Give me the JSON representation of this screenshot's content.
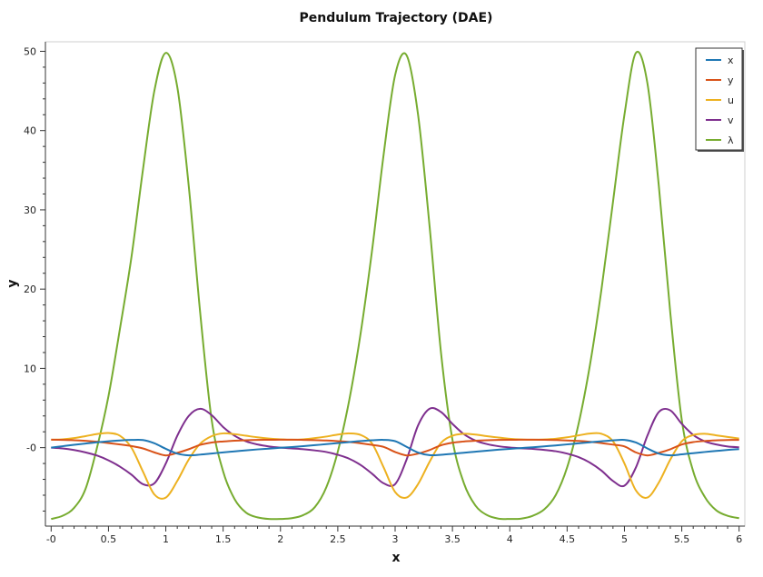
{
  "chart_data": {
    "type": "line",
    "title": "Pendulum Trajectory (DAE)",
    "xlabel": "x",
    "ylabel": "y",
    "xlim": [
      -0.05,
      6.05
    ],
    "ylim": [
      -9.9,
      51.2
    ],
    "x_ticks": [
      {
        "v": 0,
        "label": "-0"
      },
      {
        "v": 0.5,
        "label": "0.5"
      },
      {
        "v": 1,
        "label": "1"
      },
      {
        "v": 1.5,
        "label": "1.5"
      },
      {
        "v": 2,
        "label": "2"
      },
      {
        "v": 2.5,
        "label": "2.5"
      },
      {
        "v": 3,
        "label": "3"
      },
      {
        "v": 3.5,
        "label": "3.5"
      },
      {
        "v": 4,
        "label": "4"
      },
      {
        "v": 4.5,
        "label": "4.5"
      },
      {
        "v": 5,
        "label": "5"
      },
      {
        "v": 5.5,
        "label": "5.5"
      },
      {
        "v": 6,
        "label": "6"
      }
    ],
    "y_ticks": [
      {
        "v": 0,
        "label": "-0"
      },
      {
        "v": 10,
        "label": "10"
      },
      {
        "v": 20,
        "label": "20"
      },
      {
        "v": 30,
        "label": "30"
      },
      {
        "v": 40,
        "label": "40"
      },
      {
        "v": 50,
        "label": "50"
      }
    ],
    "grid": false,
    "legend_position": "top-right",
    "x": [
      0,
      0.1,
      0.2,
      0.3,
      0.4,
      0.5,
      0.6,
      0.7,
      0.8,
      0.9,
      1.0,
      1.1,
      1.2,
      1.3,
      1.4,
      1.5,
      1.6,
      1.7,
      1.8,
      1.9,
      2.0,
      2.1,
      2.2,
      2.3,
      2.4,
      2.5,
      2.6,
      2.7,
      2.8,
      2.9,
      3.0,
      3.1,
      3.2,
      3.3,
      3.4,
      3.5,
      3.6,
      3.7,
      3.8,
      3.9,
      4.0,
      4.1,
      4.2,
      4.3,
      4.4,
      4.5,
      4.6,
      4.7,
      4.8,
      4.9,
      5.0,
      5.1,
      5.2,
      5.3,
      5.4,
      5.5,
      5.6,
      5.7,
      5.8,
      5.9,
      6.0
    ],
    "series": [
      {
        "name": "x",
        "color": "#1f77b4",
        "values": [
          0.0,
          0.18,
          0.36,
          0.52,
          0.68,
          0.81,
          0.91,
          0.97,
          0.96,
          0.55,
          -0.15,
          -0.75,
          -0.97,
          -0.88,
          -0.74,
          -0.6,
          -0.47,
          -0.34,
          -0.22,
          -0.12,
          -0.02,
          0.08,
          0.19,
          0.31,
          0.44,
          0.57,
          0.7,
          0.83,
          0.93,
          0.98,
          0.82,
          0.1,
          -0.62,
          -0.95,
          -0.9,
          -0.78,
          -0.64,
          -0.51,
          -0.38,
          -0.26,
          -0.15,
          -0.05,
          0.05,
          0.16,
          0.28,
          0.41,
          0.55,
          0.68,
          0.81,
          0.92,
          0.98,
          0.65,
          -0.1,
          -0.75,
          -0.97,
          -0.85,
          -0.7,
          -0.55,
          -0.42,
          -0.29,
          -0.18
        ]
      },
      {
        "name": "y",
        "color": "#d95319",
        "values": [
          1.0,
          0.98,
          0.94,
          0.86,
          0.74,
          0.58,
          0.4,
          0.2,
          -0.1,
          -0.6,
          -0.98,
          -0.66,
          -0.2,
          0.35,
          0.65,
          0.78,
          0.87,
          0.94,
          0.98,
          0.99,
          1.0,
          1.0,
          0.98,
          0.95,
          0.9,
          0.82,
          0.72,
          0.55,
          0.35,
          0.1,
          -0.55,
          -0.98,
          -0.75,
          -0.3,
          0.3,
          0.62,
          0.78,
          0.87,
          0.93,
          0.97,
          0.99,
          1.0,
          1.0,
          0.99,
          0.96,
          0.91,
          0.84,
          0.73,
          0.58,
          0.38,
          0.15,
          -0.6,
          -0.98,
          -0.66,
          -0.2,
          0.4,
          0.7,
          0.84,
          0.92,
          0.96,
          0.98
        ]
      },
      {
        "name": "u",
        "color": "#edb120",
        "values": [
          1.0,
          1.05,
          1.2,
          1.45,
          1.72,
          1.85,
          1.5,
          0.0,
          -3.0,
          -5.9,
          -6.3,
          -4.2,
          -1.5,
          0.5,
          1.45,
          1.8,
          1.7,
          1.5,
          1.3,
          1.15,
          1.05,
          1.0,
          1.05,
          1.2,
          1.4,
          1.65,
          1.8,
          1.6,
          0.5,
          -2.5,
          -5.6,
          -6.3,
          -4.6,
          -1.8,
          0.6,
          1.5,
          1.75,
          1.65,
          1.45,
          1.28,
          1.12,
          1.03,
          1.0,
          1.03,
          1.12,
          1.3,
          1.55,
          1.78,
          1.75,
          0.8,
          -2.0,
          -5.4,
          -6.3,
          -4.4,
          -1.5,
          0.8,
          1.6,
          1.75,
          1.55,
          1.35,
          1.15
        ]
      },
      {
        "name": "v",
        "color": "#7e2f8e",
        "values": [
          0.0,
          -0.1,
          -0.3,
          -0.6,
          -1.0,
          -1.6,
          -2.4,
          -3.4,
          -4.6,
          -4.5,
          -2.0,
          1.5,
          4.0,
          4.9,
          4.1,
          2.6,
          1.5,
          0.8,
          0.4,
          0.15,
          0.0,
          -0.1,
          -0.2,
          -0.35,
          -0.55,
          -0.9,
          -1.4,
          -2.2,
          -3.3,
          -4.5,
          -4.6,
          -1.5,
          2.8,
          4.9,
          4.5,
          3.0,
          1.7,
          0.9,
          0.45,
          0.18,
          0.02,
          -0.08,
          -0.15,
          -0.28,
          -0.45,
          -0.75,
          -1.2,
          -1.9,
          -2.9,
          -4.2,
          -4.8,
          -2.5,
          1.5,
          4.5,
          4.7,
          3.0,
          1.6,
          0.8,
          0.4,
          0.15,
          0.05
        ]
      },
      {
        "name": "λ",
        "color": "#77ac30",
        "values": [
          -9.0,
          -8.6,
          -7.6,
          -5.2,
          0.0,
          6.5,
          15.0,
          24.0,
          35.0,
          45.0,
          49.8,
          45.5,
          33.0,
          17.0,
          3.5,
          -3.0,
          -6.5,
          -8.2,
          -8.8,
          -9.0,
          -9.0,
          -8.9,
          -8.5,
          -7.5,
          -5.0,
          -0.5,
          6.0,
          14.5,
          25.0,
          37.0,
          47.0,
          49.5,
          42.0,
          28.0,
          12.0,
          1.0,
          -4.5,
          -7.3,
          -8.5,
          -8.95,
          -9.0,
          -8.95,
          -8.6,
          -7.8,
          -6.0,
          -2.5,
          3.0,
          10.5,
          20.0,
          31.0,
          42.0,
          49.8,
          46.0,
          33.0,
          17.0,
          3.5,
          -3.0,
          -6.2,
          -7.9,
          -8.6,
          -8.9
        ]
      }
    ]
  }
}
